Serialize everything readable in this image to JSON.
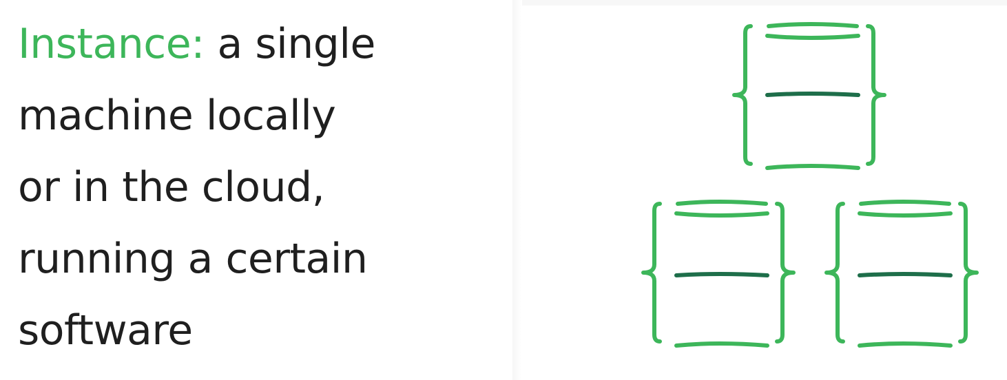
{
  "definition": {
    "term": "Instance:",
    "lines": [
      " a single",
      "machine locally",
      "or in the cloud,",
      "running a certain",
      "software"
    ]
  },
  "illustration": {
    "icons": [
      "database-icon",
      "database-icon",
      "database-icon"
    ],
    "colors": {
      "brace": "#3db65a",
      "middle_line": "#1e6e4a",
      "term_text": "#3db65a",
      "body_text": "#1f1f1f"
    }
  }
}
